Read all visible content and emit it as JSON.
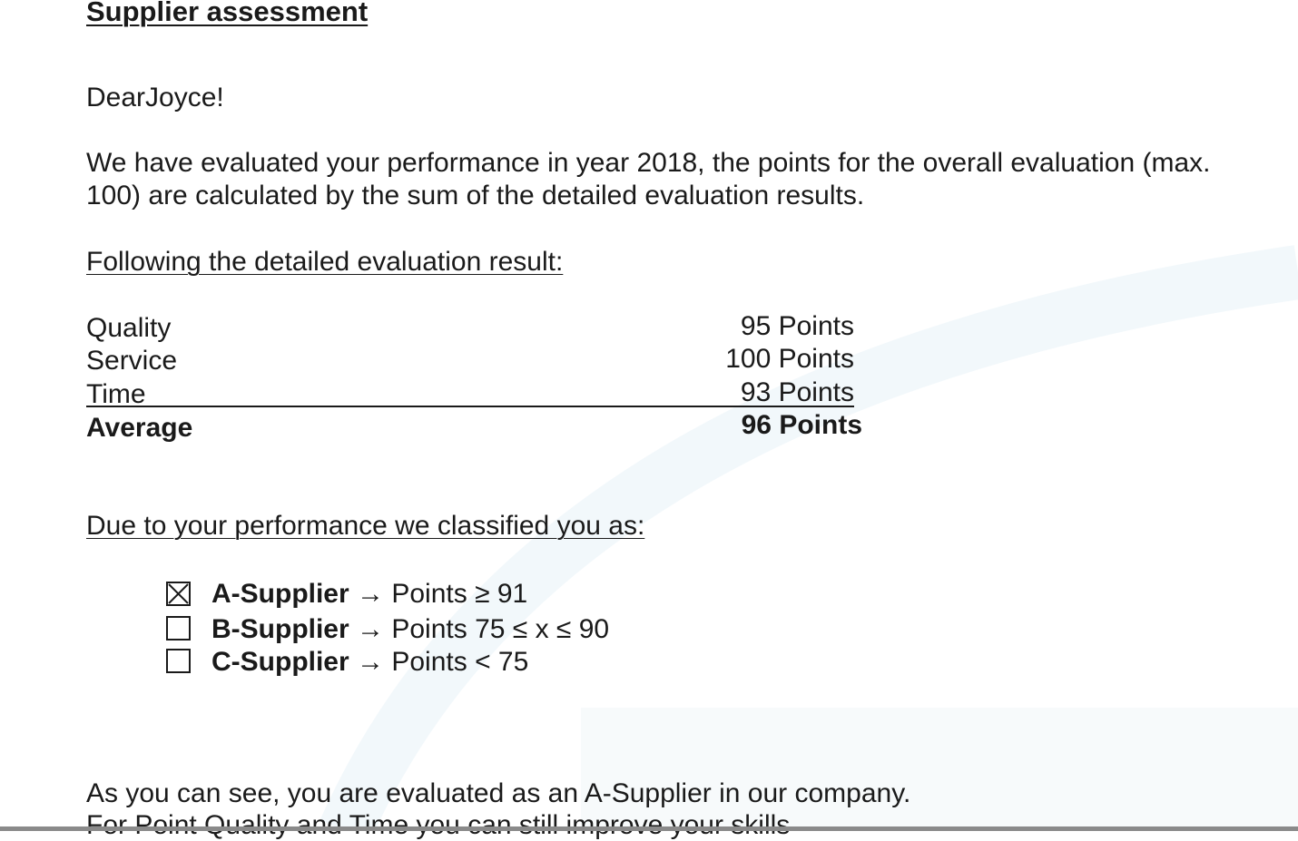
{
  "title": "Supplier assessment",
  "greeting": "DearJoyce!",
  "intro_line1": "We have evaluated your performance in year 2018, the points for the overall evaluation (max.",
  "intro_line2": "100) are calculated by the sum of the detailed evaluation results.",
  "results_heading": "Following the detailed evaluation result:",
  "results": [
    {
      "label": "Quality",
      "value": "95 Points"
    },
    {
      "label": "Service",
      "value": "100 Points"
    },
    {
      "label": "Time",
      "value": "93 Points"
    }
  ],
  "average": {
    "label": "Average",
    "value": "96 Points"
  },
  "classification_heading": "Due to your performance we classified you as:",
  "classes": [
    {
      "name": "A-Supplier",
      "rule": "→ Points  ≥ 91",
      "checked": true
    },
    {
      "name": "B-Supplier",
      "rule": "→ Points  75 ≤ x ≤ 90",
      "checked": false
    },
    {
      "name": "C-Supplier",
      "rule": "→ Points  < 75",
      "checked": false
    }
  ],
  "conclusion_line1": "As you can see, you are evaluated as an A-Supplier in our company.",
  "conclusion_line2": "For Point Quality and Time you can still improve your skills"
}
